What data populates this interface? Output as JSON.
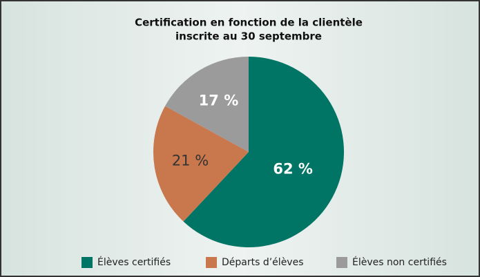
{
  "chart_data": {
    "type": "pie",
    "title": [
      "Certification en fonction de la clientèle",
      "inscrite au 30 septembre"
    ],
    "categories": [
      "Élèves certifiés",
      "Départs d’élèves",
      "Élèves non certifiés"
    ],
    "values": [
      62,
      21,
      17
    ],
    "value_labels": [
      "62 %",
      "21 %",
      "17 %"
    ],
    "colors": [
      "#007565",
      "#c9774c",
      "#9b9b9b"
    ],
    "label_colors": [
      "#ffffff",
      "#333333",
      "#ffffff"
    ],
    "legend": "bottom"
  }
}
